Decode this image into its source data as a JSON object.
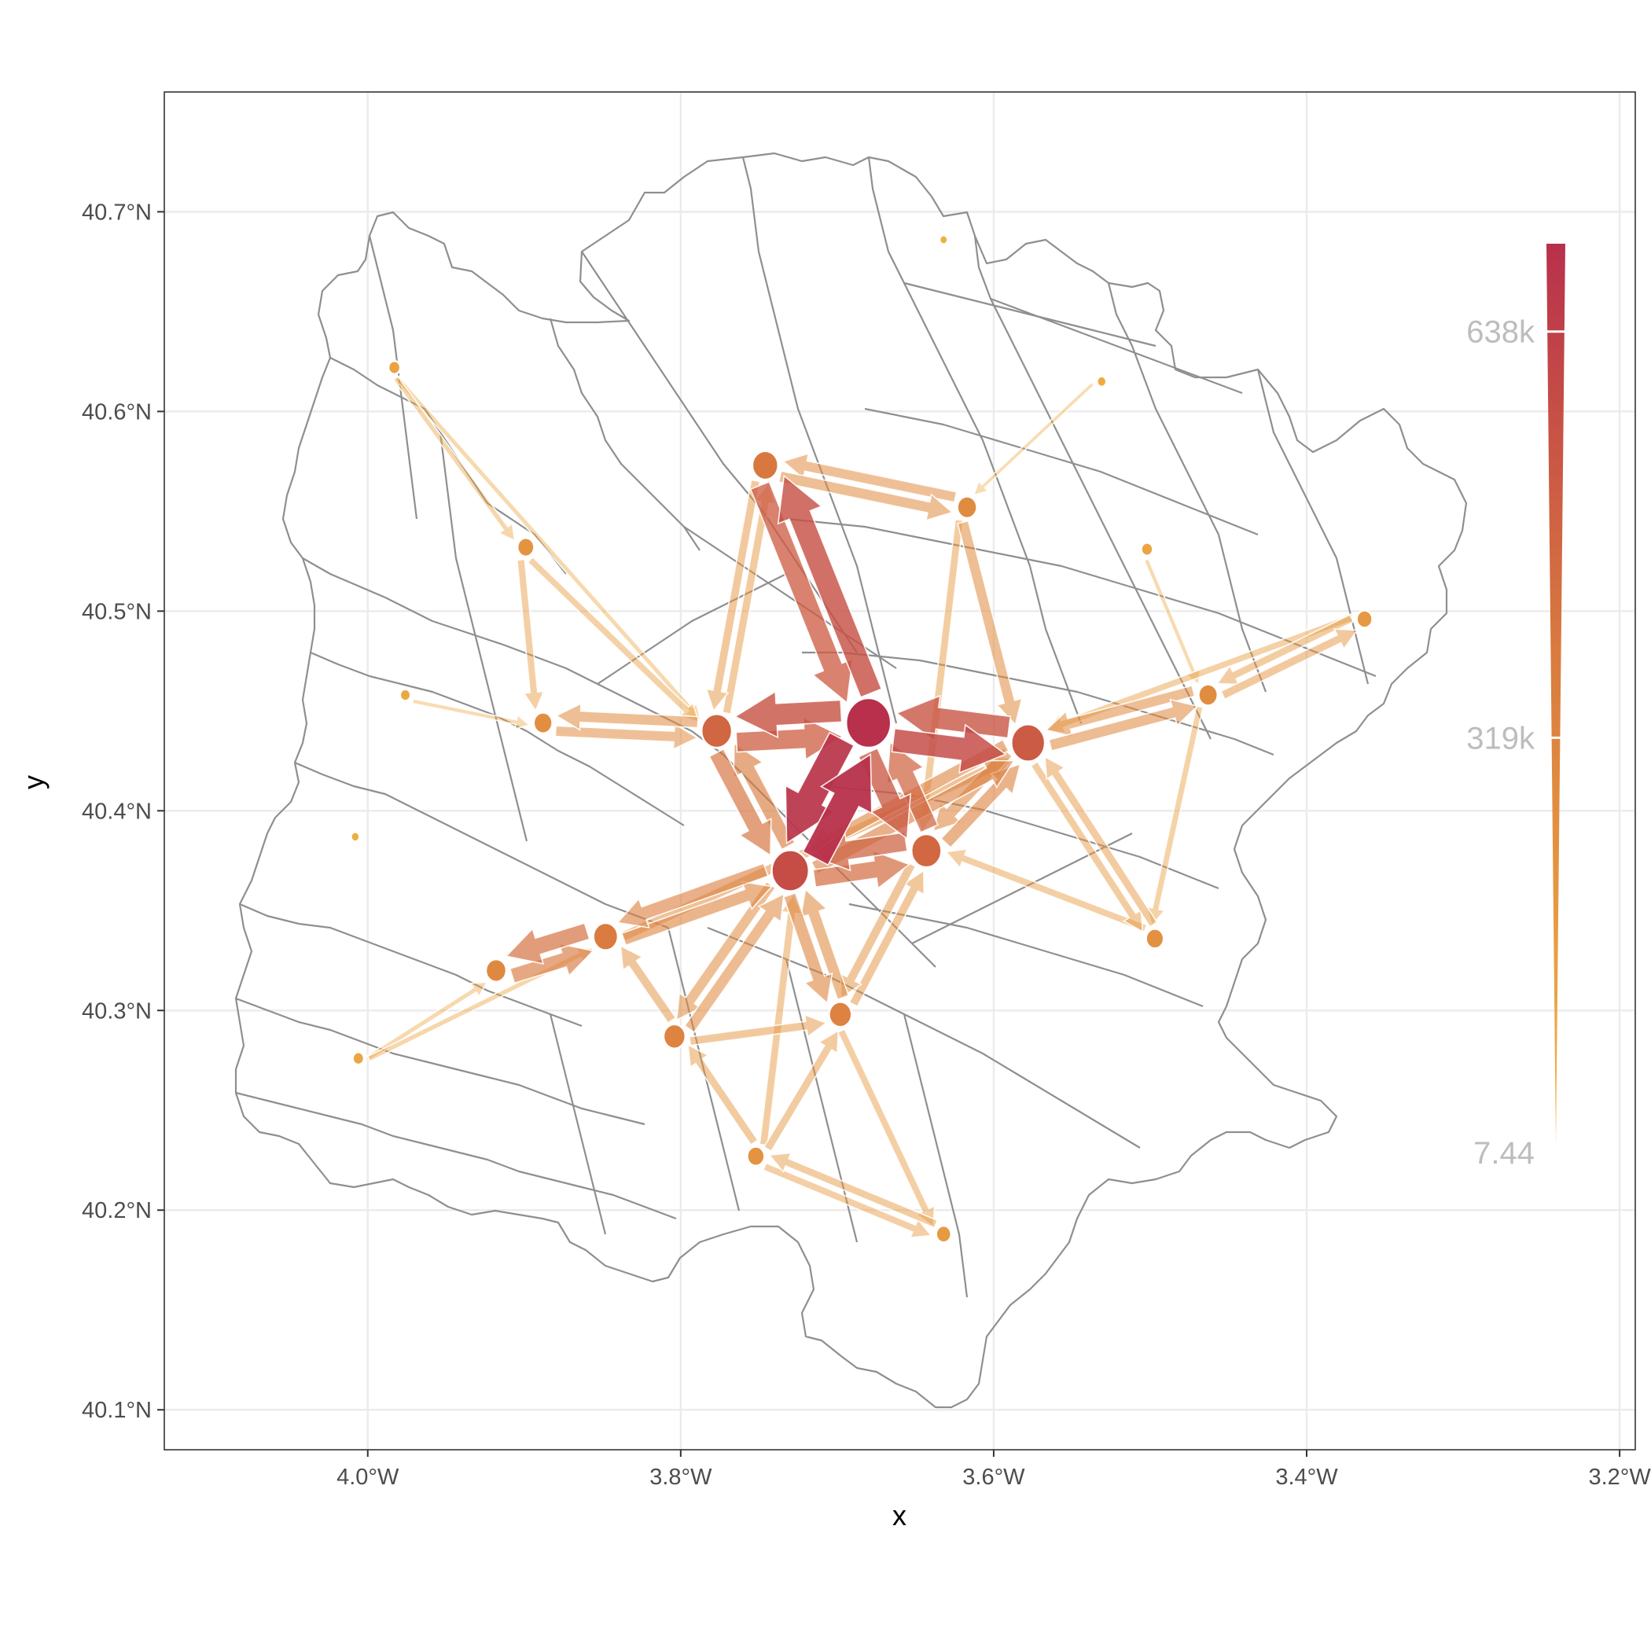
{
  "chart_data": {
    "type": "flow-map",
    "xlabel": "x",
    "ylabel": "y",
    "xlim": [
      -4.13,
      -3.19
    ],
    "ylim": [
      40.08,
      40.76
    ],
    "x_ticks": [
      {
        "value": -4.0,
        "label": "4.0°W"
      },
      {
        "value": -3.8,
        "label": "3.8°W"
      },
      {
        "value": -3.6,
        "label": "3.6°W"
      },
      {
        "value": -3.4,
        "label": "3.4°W"
      },
      {
        "value": -3.2,
        "label": "3.2°W"
      }
    ],
    "y_ticks": [
      {
        "value": 40.1,
        "label": "40.1°N"
      },
      {
        "value": 40.2,
        "label": "40.2°N"
      },
      {
        "value": 40.3,
        "label": "40.3°N"
      },
      {
        "value": 40.4,
        "label": "40.4°N"
      },
      {
        "value": 40.5,
        "label": "40.5°N"
      },
      {
        "value": 40.6,
        "label": "40.6°N"
      },
      {
        "value": 40.7,
        "label": "40.7°N"
      }
    ],
    "grid": true,
    "colors": {
      "low": "#F2B544",
      "mid": "#D97A3F",
      "high": "#B8304B",
      "border": "#8f8f8f",
      "grid": "#ebebeb"
    },
    "legend": {
      "type": "size-color",
      "placement": "right",
      "min": 7.44,
      "max": 707000,
      "breaks": [
        {
          "value": 638000,
          "label": "638k"
        },
        {
          "value": 319000,
          "label": "319k"
        },
        {
          "value": 7.44,
          "label": "7.44"
        }
      ]
    },
    "nodes": [
      {
        "id": "center",
        "x": -3.68,
        "y": 40.444,
        "size": 650000
      },
      {
        "id": "southwest-hub",
        "x": -3.73,
        "y": 40.37,
        "size": 420000
      },
      {
        "id": "north",
        "x": -3.746,
        "y": 40.573,
        "size": 170000
      },
      {
        "id": "west",
        "x": -3.777,
        "y": 40.44,
        "size": 260000
      },
      {
        "id": "east",
        "x": -3.578,
        "y": 40.434,
        "size": 330000
      },
      {
        "id": "south-east",
        "x": -3.643,
        "y": 40.38,
        "size": 250000
      },
      {
        "id": "southwest",
        "x": -3.848,
        "y": 40.337,
        "size": 150000
      },
      {
        "id": "south",
        "x": -3.698,
        "y": 40.298,
        "size": 120000
      },
      {
        "id": "south-west-2",
        "x": -3.804,
        "y": 40.287,
        "size": 110000
      },
      {
        "id": "far-west",
        "x": -3.918,
        "y": 40.32,
        "size": 90000
      },
      {
        "id": "north-east",
        "x": -3.617,
        "y": 40.552,
        "size": 80000
      },
      {
        "id": "north-west",
        "x": -3.899,
        "y": 40.532,
        "size": 50000
      },
      {
        "id": "west-2",
        "x": -3.888,
        "y": 40.444,
        "size": 70000
      },
      {
        "id": "east-2",
        "x": -3.463,
        "y": 40.458,
        "size": 75000
      },
      {
        "id": "far-east",
        "x": -3.363,
        "y": 40.496,
        "size": 40000
      },
      {
        "id": "south-east-2",
        "x": -3.497,
        "y": 40.336,
        "size": 60000
      },
      {
        "id": "south-2",
        "x": -3.752,
        "y": 40.227,
        "size": 55000
      },
      {
        "id": "south-3",
        "x": -3.632,
        "y": 40.188,
        "size": 35000
      },
      {
        "id": "far-nw",
        "x": -3.983,
        "y": 40.622,
        "size": 15000
      },
      {
        "id": "far-w",
        "x": -3.976,
        "y": 40.458,
        "size": 9000
      },
      {
        "id": "far-w-2",
        "x": -4.008,
        "y": 40.387,
        "size": 3000
      },
      {
        "id": "far-sw",
        "x": -4.006,
        "y": 40.276,
        "size": 12000
      },
      {
        "id": "north-far",
        "x": -3.632,
        "y": 40.686,
        "size": 2000
      },
      {
        "id": "ne-2",
        "x": -3.531,
        "y": 40.615,
        "size": 5000
      },
      {
        "id": "ne-3",
        "x": -3.502,
        "y": 40.531,
        "size": 14000
      }
    ],
    "flows": [
      {
        "from": "southwest-hub",
        "to": "center",
        "value": 707000
      },
      {
        "from": "center",
        "to": "southwest-hub",
        "value": 660000
      },
      {
        "from": "center",
        "to": "east",
        "value": 470000
      },
      {
        "from": "east",
        "to": "center",
        "value": 400000
      },
      {
        "from": "center",
        "to": "north",
        "value": 430000
      },
      {
        "from": "north",
        "to": "center",
        "value": 340000
      },
      {
        "from": "center",
        "to": "west",
        "value": 410000
      },
      {
        "from": "west",
        "to": "center",
        "value": 330000
      },
      {
        "from": "center",
        "to": "south-east",
        "value": 360000
      },
      {
        "from": "south-east",
        "to": "center",
        "value": 290000
      },
      {
        "from": "south-east",
        "to": "southwest-hub",
        "value": 300000
      },
      {
        "from": "southwest-hub",
        "to": "south-east",
        "value": 250000
      },
      {
        "from": "west",
        "to": "southwest-hub",
        "value": 210000
      },
      {
        "from": "southwest-hub",
        "to": "west",
        "value": 170000
      },
      {
        "from": "southwest",
        "to": "far-west",
        "value": 230000
      },
      {
        "from": "far-west",
        "to": "southwest",
        "value": 180000
      },
      {
        "from": "southwest-hub",
        "to": "southwest",
        "value": 140000
      },
      {
        "from": "southwest",
        "to": "southwest-hub",
        "value": 120000
      },
      {
        "from": "southwest-hub",
        "to": "south",
        "value": 120000
      },
      {
        "from": "south",
        "to": "southwest-hub",
        "value": 100000
      },
      {
        "from": "southwest-hub",
        "to": "east",
        "value": 140000
      },
      {
        "from": "east",
        "to": "southwest-hub",
        "value": 120000
      },
      {
        "from": "south-east",
        "to": "east",
        "value": 130000
      },
      {
        "from": "east",
        "to": "south-east",
        "value": 110000
      },
      {
        "from": "west",
        "to": "west-2",
        "value": 90000
      },
      {
        "from": "west-2",
        "to": "west",
        "value": 80000
      },
      {
        "from": "north",
        "to": "north-east",
        "value": 90000
      },
      {
        "from": "north-east",
        "to": "north",
        "value": 80000
      },
      {
        "from": "north-east",
        "to": "east",
        "value": 85000
      },
      {
        "from": "east",
        "to": "east-2",
        "value": 95000
      },
      {
        "from": "east-2",
        "to": "east",
        "value": 85000
      },
      {
        "from": "east-2",
        "to": "far-east",
        "value": 50000
      },
      {
        "from": "far-east",
        "to": "east-2",
        "value": 40000
      },
      {
        "from": "south-west-2",
        "to": "southwest-hub",
        "value": 95000
      },
      {
        "from": "southwest-hub",
        "to": "south-west-2",
        "value": 85000
      },
      {
        "from": "south-west-2",
        "to": "southwest",
        "value": 60000
      },
      {
        "from": "south-west-2",
        "to": "south",
        "value": 50000
      },
      {
        "from": "south-2",
        "to": "south-west-2",
        "value": 45000
      },
      {
        "from": "south-2",
        "to": "south",
        "value": 45000
      },
      {
        "from": "south-3",
        "to": "south-2",
        "value": 40000
      },
      {
        "from": "south-2",
        "to": "south-3",
        "value": 35000
      },
      {
        "from": "south",
        "to": "south-3",
        "value": 35000
      },
      {
        "from": "south-east-2",
        "to": "east",
        "value": 45000
      },
      {
        "from": "east",
        "to": "south-east-2",
        "value": 40000
      },
      {
        "from": "south-east-2",
        "to": "south-east",
        "value": 35000
      },
      {
        "from": "east-2",
        "to": "south-east-2",
        "value": 25000
      },
      {
        "from": "north-west",
        "to": "west-2",
        "value": 35000
      },
      {
        "from": "north-west",
        "to": "west",
        "value": 30000
      },
      {
        "from": "far-nw",
        "to": "north-west",
        "value": 15000
      },
      {
        "from": "far-nw",
        "to": "west",
        "value": 12000
      },
      {
        "from": "north",
        "to": "west",
        "value": 50000
      },
      {
        "from": "west",
        "to": "north",
        "value": 45000
      },
      {
        "from": "far-sw",
        "to": "southwest",
        "value": 15000
      },
      {
        "from": "far-sw",
        "to": "far-west",
        "value": 12000
      },
      {
        "from": "far-w",
        "to": "west-2",
        "value": 8000
      },
      {
        "from": "ne-2",
        "to": "north-east",
        "value": 6000
      },
      {
        "from": "ne-3",
        "to": "east-2",
        "value": 9000
      },
      {
        "from": "far-east",
        "to": "east",
        "value": 30000
      },
      {
        "from": "south-east",
        "to": "south",
        "value": 60000
      },
      {
        "from": "south",
        "to": "south-east",
        "value": 55000
      },
      {
        "from": "southwest",
        "to": "east",
        "value": 70000
      },
      {
        "from": "north-east",
        "to": "south-east",
        "value": 40000
      },
      {
        "from": "south-2",
        "to": "southwest-hub",
        "value": 40000
      }
    ]
  }
}
